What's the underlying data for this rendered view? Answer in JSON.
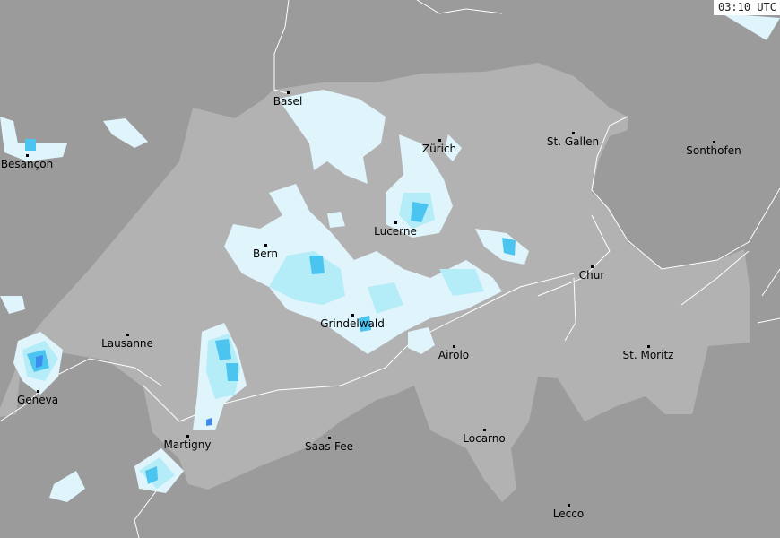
{
  "timestamp": "03:10 UTC",
  "colors": {
    "outside": "#9b9b9b",
    "switzerland": "#b2b2b2",
    "precip_light": "#e0f4fc",
    "precip_medium": "#b4ecf8",
    "precip_heavy": "#4cc4f0",
    "precip_intense": "#3c8cf0",
    "border": "#ffffff"
  },
  "cities": [
    {
      "name": "Basel"
    },
    {
      "name": "Besançon"
    },
    {
      "name": "Zürich"
    },
    {
      "name": "St. Gallen"
    },
    {
      "name": "Sonthofen"
    },
    {
      "name": "Lucerne"
    },
    {
      "name": "Bern"
    },
    {
      "name": "Chur"
    },
    {
      "name": "Lausanne"
    },
    {
      "name": "Grindelwald"
    },
    {
      "name": "Airolo"
    },
    {
      "name": "St. Moritz"
    },
    {
      "name": "Geneva"
    },
    {
      "name": "Martigny"
    },
    {
      "name": "Saas-Fee"
    },
    {
      "name": "Locarno"
    },
    {
      "name": "Lecco"
    }
  ]
}
